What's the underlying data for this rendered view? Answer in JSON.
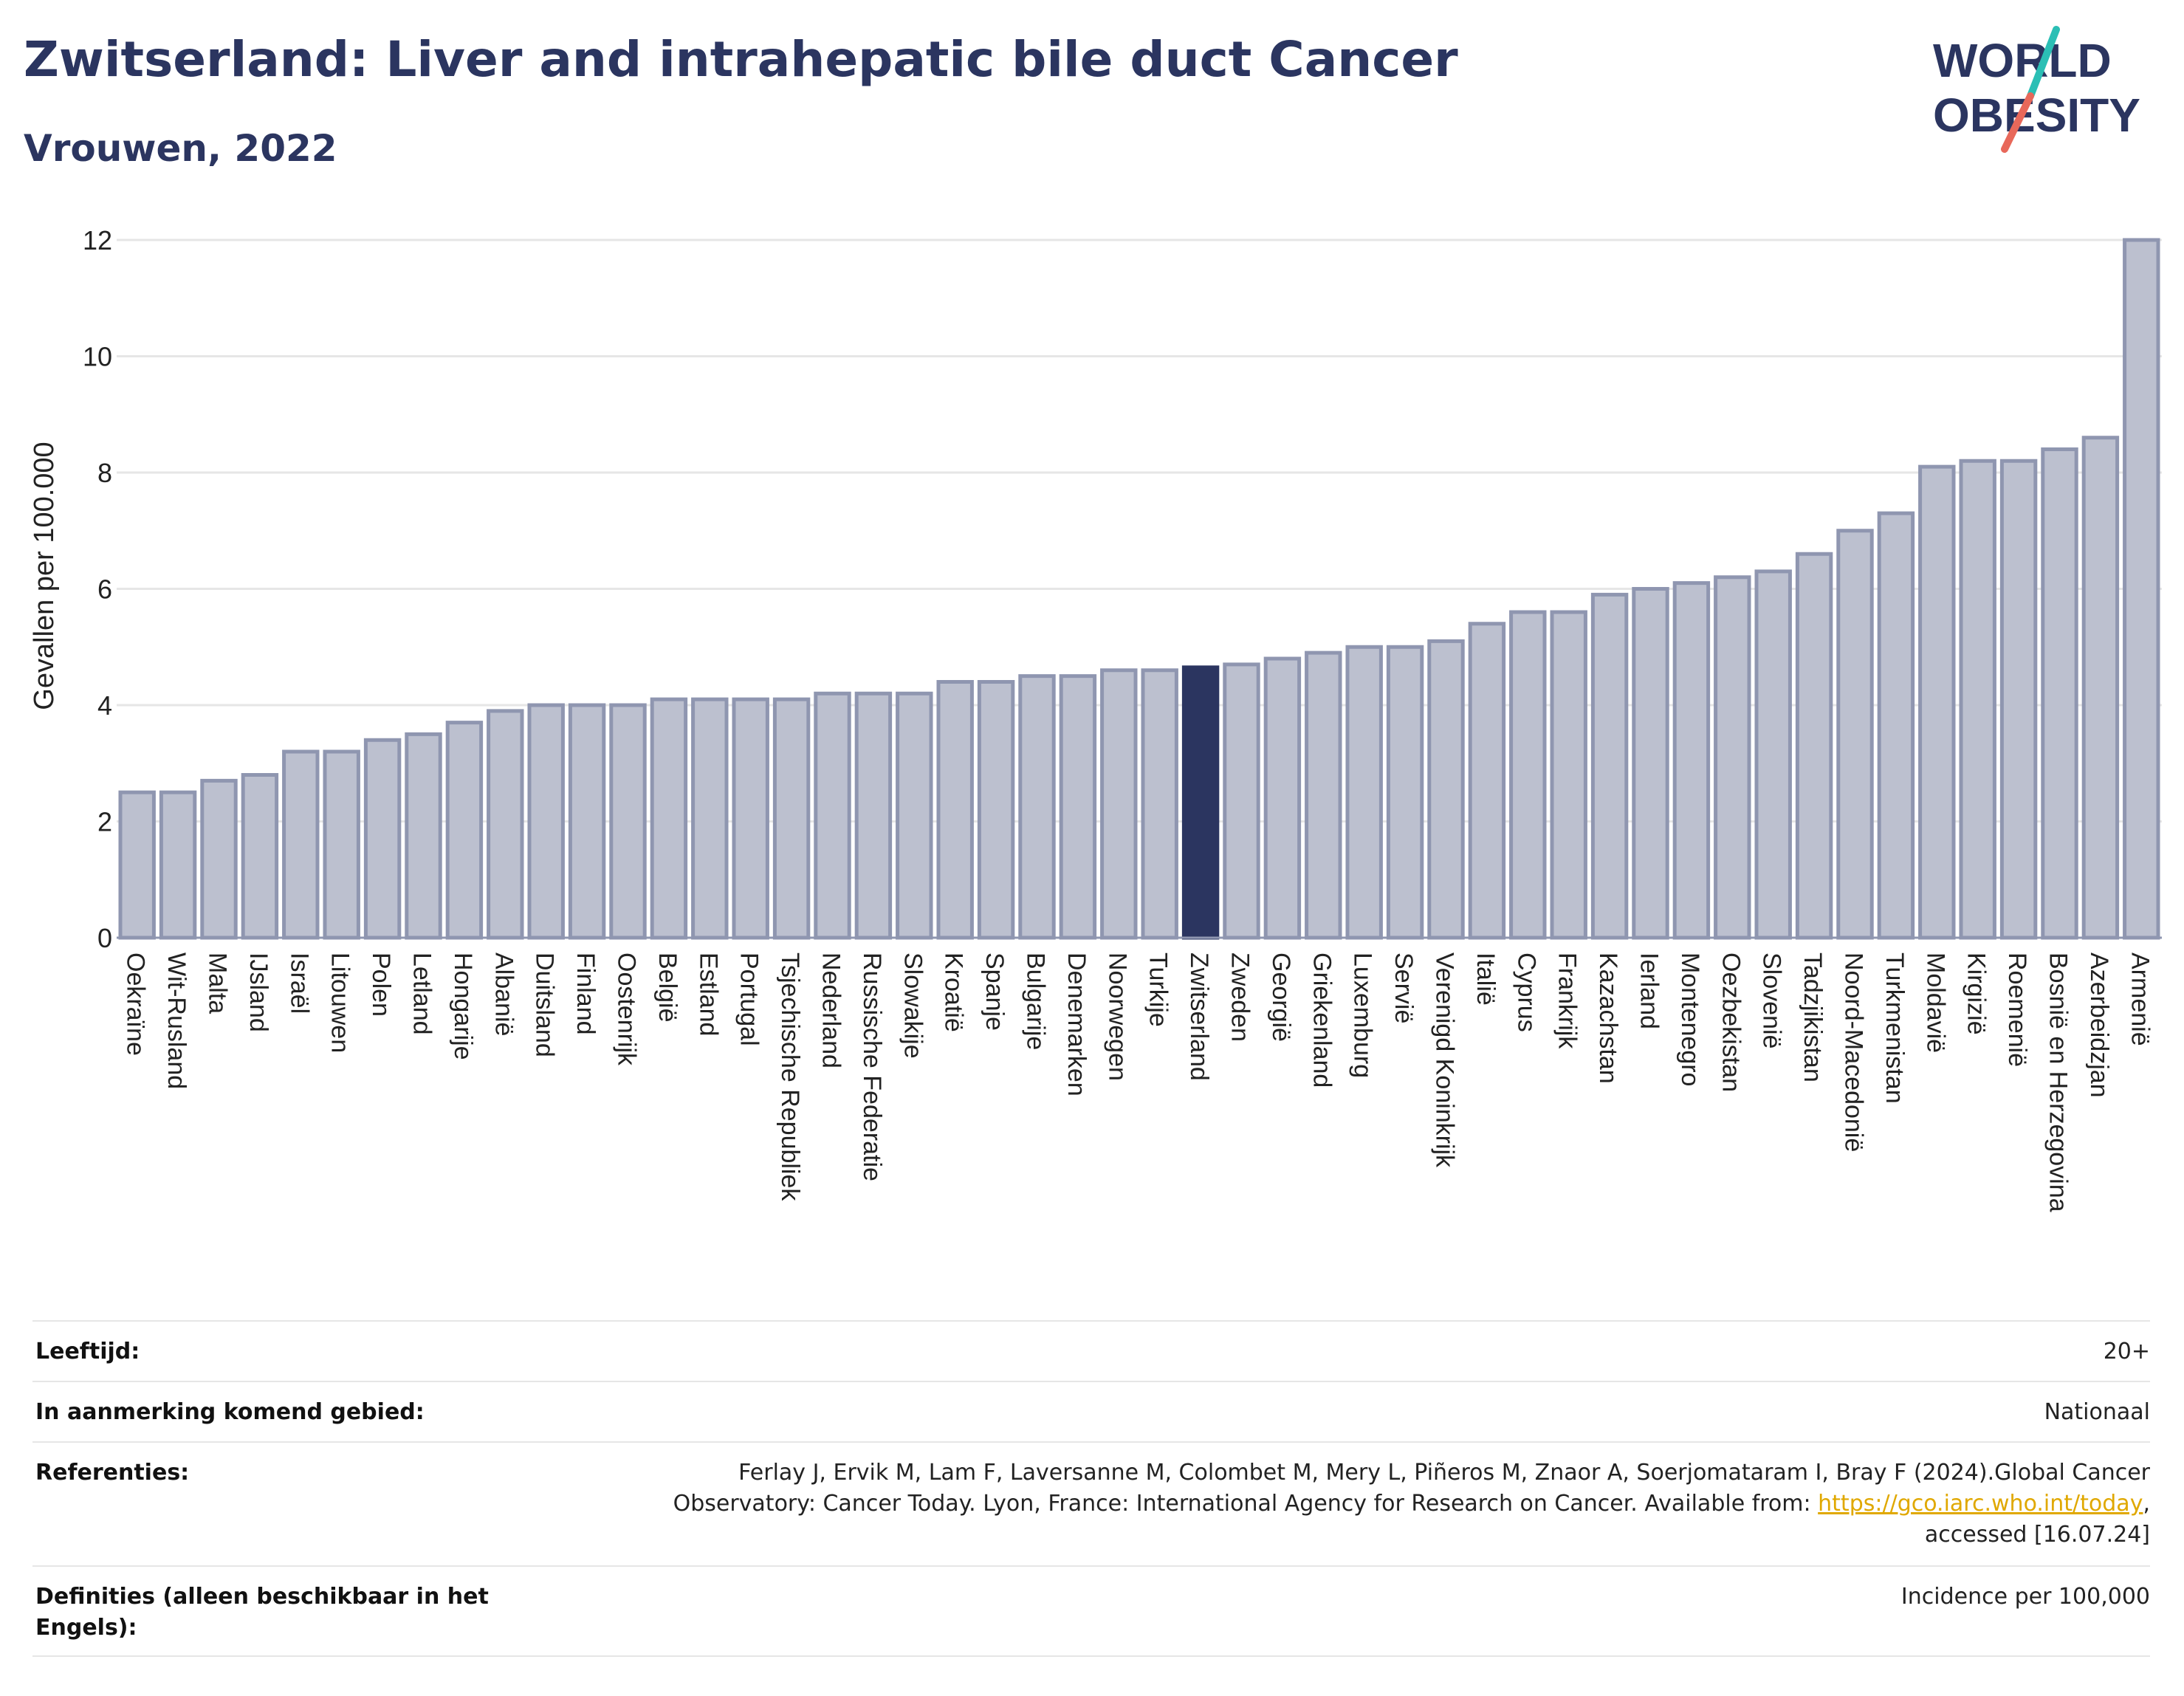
{
  "title": "Zwitserland: Liver and intrahepatic bile duct Cancer",
  "subtitle": "Vrouwen, 2022",
  "logo": {
    "line1": "WORLD",
    "line2": "OBESITY",
    "accent_colors": [
      "#2bbfb5",
      "#e8685a"
    ]
  },
  "chart_data": {
    "type": "bar",
    "ylabel": "Gevallen per 100.000",
    "ylim": [
      0,
      12
    ],
    "yticks": [
      0,
      2,
      4,
      6,
      8,
      10,
      12
    ],
    "grid": true,
    "highlight": "Zwitserland",
    "colors": {
      "bar": "#bcc0cf",
      "bar_border": "#8f96b0",
      "highlight": "#2b3560"
    },
    "categories": [
      "Oekraïne",
      "Wit-Rusland",
      "Malta",
      "IJsland",
      "Israël",
      "Litouwen",
      "Polen",
      "Letland",
      "Hongarije",
      "Albanië",
      "Duitsland",
      "Finland",
      "Oostenrijk",
      "België",
      "Estland",
      "Portugal",
      "Tsjechische Republiek",
      "Nederland",
      "Russische Federatie",
      "Slowakije",
      "Kroatië",
      "Spanje",
      "Bulgarije",
      "Denemarken",
      "Noorwegen",
      "Turkije",
      "Zwitserland",
      "Zweden",
      "Georgië",
      "Griekenland",
      "Luxemburg",
      "Servië",
      "Verenigd Koninkrijk",
      "Italië",
      "Cyprus",
      "Frankrijk",
      "Kazachstan",
      "Ierland",
      "Montenegro",
      "Oezbekistan",
      "Slovenië",
      "Tadzjikistan",
      "Noord-Macedonië",
      "Turkmenistan",
      "Moldavië",
      "Kirgizië",
      "Roemenië",
      "Bosnië en Herzegovina",
      "Azerbeidzjan",
      "Armenië"
    ],
    "values": [
      2.5,
      2.5,
      2.7,
      2.8,
      3.2,
      3.2,
      3.4,
      3.5,
      3.7,
      3.9,
      4.0,
      4.0,
      4.0,
      4.1,
      4.1,
      4.1,
      4.1,
      4.2,
      4.2,
      4.2,
      4.4,
      4.4,
      4.5,
      4.5,
      4.6,
      4.6,
      4.65,
      4.7,
      4.8,
      4.9,
      5.0,
      5.0,
      5.1,
      5.4,
      5.6,
      5.6,
      5.9,
      6.0,
      6.1,
      6.2,
      6.3,
      6.6,
      7.0,
      7.3,
      8.1,
      8.2,
      8.2,
      8.4,
      8.6,
      12.0
    ]
  },
  "info": [
    {
      "label": "Leeftijd:",
      "value": "20+"
    },
    {
      "label": "In aanmerking komend gebied:",
      "value": "Nationaal"
    },
    {
      "label": "Referenties:",
      "value_line1": "Ferlay J, Ervik M, Lam F, Laversanne M, Colombet M, Mery L, Piñeros M, Znaor A, Soerjomataram I, Bray F (2024).Global Cancer",
      "value_line2_pre": "Observatory: Cancer Today. Lyon, France: International Agency for Research on Cancer. Available from: ",
      "value_link": "https://gco.iarc.who.int/today",
      "value_line2_post": ",",
      "value_line3": "accessed [16.07.24]"
    },
    {
      "label_line1": "Definities (alleen beschikbaar in het",
      "label_line2": "Engels):",
      "value": "Incidence per 100,000"
    }
  ]
}
